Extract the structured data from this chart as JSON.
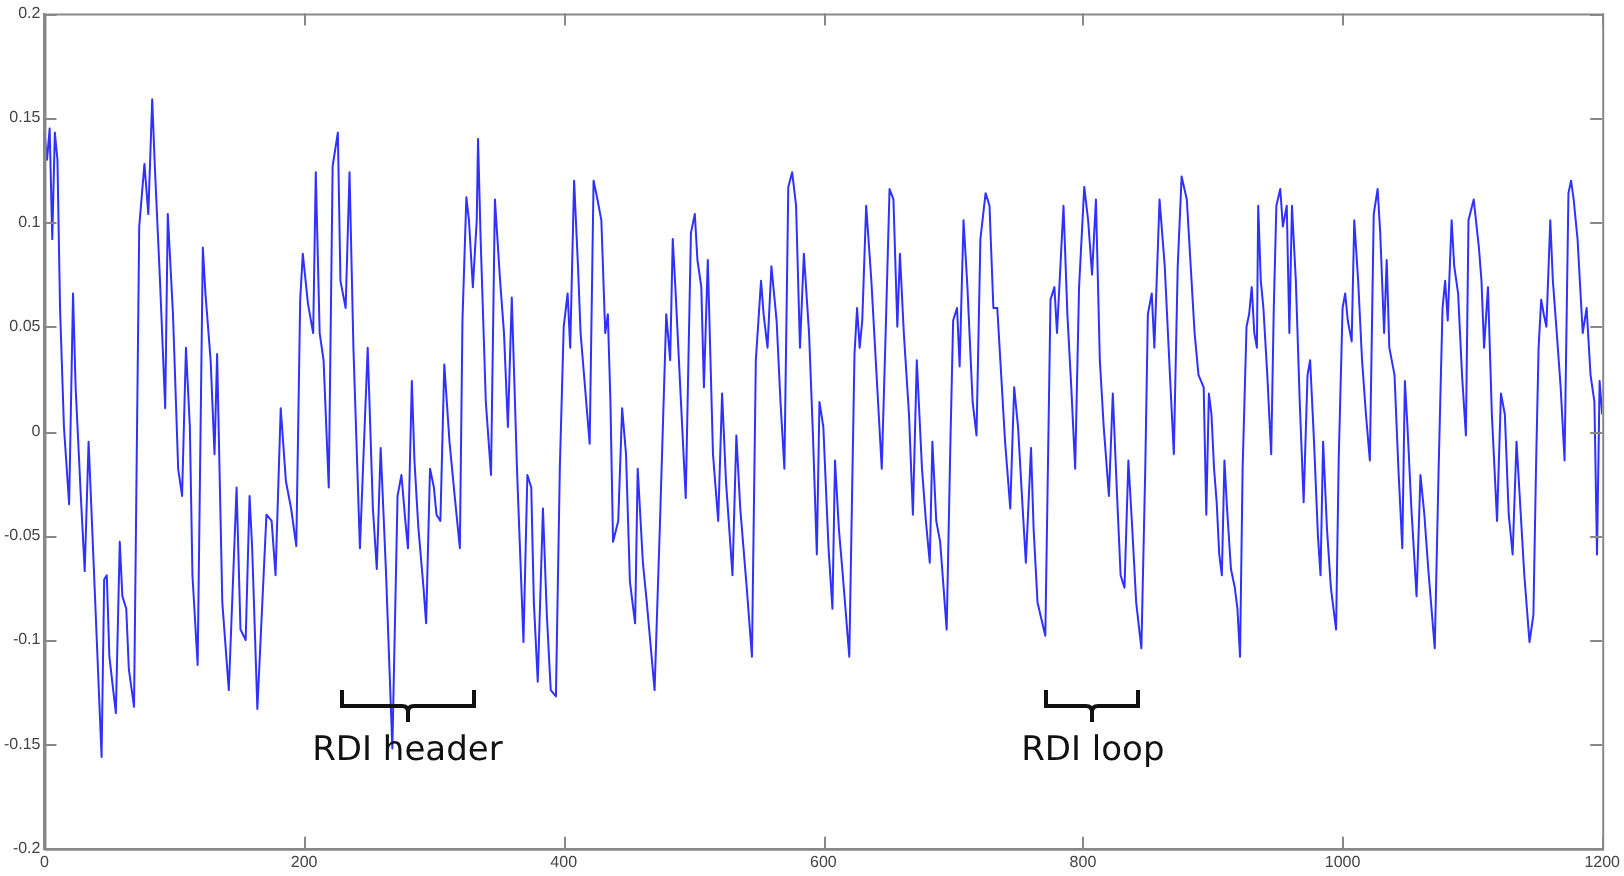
{
  "chart_data": {
    "type": "line",
    "xlim": [
      0,
      1200
    ],
    "xticks": [
      0,
      200,
      400,
      600,
      800,
      1000,
      1200
    ],
    "ylim": [
      -0.2,
      0.2
    ],
    "yticks": [
      -0.2,
      -0.15,
      -0.1,
      -0.05,
      0,
      0.05,
      0.1,
      0.15,
      0.2
    ],
    "grid": false,
    "legend": false,
    "marker": "none",
    "line_style": "solid",
    "annotations": [
      "RDI header",
      "RDI loop"
    ],
    "series": [
      {
        "color": "#3030ff",
        "x": [
          0,
          2,
          4,
          6,
          8,
          10,
          12,
          15,
          19,
          22,
          24,
          28,
          31,
          34,
          37,
          44,
          46,
          48,
          50,
          55,
          58,
          60,
          63,
          65,
          69,
          73,
          77,
          80,
          83,
          85,
          89,
          93,
          95,
          99,
          103,
          106,
          109,
          112,
          114,
          118,
          122,
          124,
          128,
          131,
          133,
          137,
          142,
          148,
          151,
          155,
          158,
          160,
          164,
          171,
          175,
          178,
          182,
          186,
          190,
          194,
          197,
          199,
          203,
          207,
          209,
          212,
          215,
          219,
          222,
          226,
          228,
          232,
          235,
          238,
          243,
          249,
          253,
          256,
          259,
          263,
          268,
          272,
          275,
          278,
          280,
          283,
          285,
          288,
          292,
          294,
          297,
          300,
          302,
          305,
          308,
          312,
          316,
          320,
          322,
          325,
          327,
          330,
          333,
          334,
          336,
          340,
          344,
          347,
          351,
          354,
          357,
          360,
          364,
          369,
          372,
          375,
          377,
          380,
          384,
          387,
          390,
          394,
          397,
          400,
          403,
          405,
          408,
          411,
          413,
          420,
          423,
          426,
          429,
          432,
          434,
          436,
          438,
          442,
          445,
          448,
          451,
          455,
          457,
          461,
          464,
          470,
          474,
          479,
          482,
          484,
          486,
          490,
          494,
          498,
          501,
          503,
          506,
          508,
          511,
          515,
          519,
          522,
          525,
          530,
          533,
          536,
          541,
          545,
          548,
          552,
          554,
          557,
          560,
          564,
          567,
          570,
          573,
          576,
          579,
          582,
          585,
          589,
          592,
          595,
          597,
          600,
          604,
          607,
          609,
          612,
          615,
          620,
          624,
          626,
          628,
          630,
          633,
          637,
          641,
          645,
          648,
          651,
          654,
          657,
          659,
          662,
          666,
          669,
          672,
          676,
          679,
          682,
          684,
          687,
          690,
          695,
          698,
          700,
          703,
          705,
          708,
          711,
          715,
          718,
          721,
          725,
          728,
          731,
          734,
          737,
          740,
          744,
          747,
          750,
          753,
          756,
          760,
          762,
          765,
          771,
          775,
          778,
          780,
          785,
          788,
          791,
          794,
          797,
          801,
          804,
          807,
          810,
          813,
          816,
          820,
          823,
          826,
          829,
          832,
          835,
          838,
          841,
          845,
          848,
          850,
          853,
          855,
          859,
          863,
          867,
          870,
          873,
          876,
          880,
          883,
          886,
          889,
          893,
          895,
          897,
          899,
          901,
          903,
          905,
          907,
          909,
          911,
          914,
          917,
          919,
          921,
          923,
          926,
          928,
          930,
          932,
          934,
          935,
          937,
          939,
          942,
          945,
          947,
          949,
          952,
          954,
          957,
          959,
          961,
          964,
          967,
          970,
          973,
          975,
          978,
          981,
          983,
          985,
          988,
          991,
          995,
          997,
          1000,
          1002,
          1004,
          1007,
          1009,
          1012,
          1015,
          1018,
          1021,
          1024,
          1027,
          1029,
          1032,
          1034,
          1036,
          1040,
          1043,
          1046,
          1048,
          1050,
          1053,
          1057,
          1060,
          1063,
          1066,
          1071,
          1074,
          1077,
          1079,
          1081,
          1084,
          1086,
          1089,
          1092,
          1095,
          1097,
          1101,
          1105,
          1107,
          1109,
          1112,
          1115,
          1119,
          1122,
          1125,
          1128,
          1131,
          1134,
          1137,
          1140,
          1144,
          1147,
          1149,
          1151,
          1153,
          1155,
          1157,
          1160,
          1162,
          1165,
          1168,
          1171,
          1174,
          1176,
          1178,
          1181,
          1185,
          1188,
          1191,
          1194,
          1196,
          1198,
          1200
        ],
        "values": [
          0.143,
          0.13,
          0.145,
          0.092,
          0.143,
          0.13,
          0.059,
          0.002,
          -0.035,
          0.066,
          0.021,
          -0.031,
          -0.067,
          -0.005,
          -0.05,
          -0.156,
          -0.071,
          -0.069,
          -0.108,
          -0.135,
          -0.053,
          -0.079,
          -0.085,
          -0.114,
          -0.132,
          0.098,
          0.128,
          0.104,
          0.159,
          0.127,
          0.072,
          0.011,
          0.104,
          0.056,
          -0.018,
          -0.031,
          0.04,
          0.002,
          -0.069,
          -0.112,
          0.088,
          0.066,
          0.034,
          -0.011,
          0.037,
          -0.082,
          -0.124,
          -0.027,
          -0.095,
          -0.1,
          -0.031,
          -0.056,
          -0.133,
          -0.04,
          -0.043,
          -0.069,
          0.011,
          -0.024,
          -0.037,
          -0.055,
          0.063,
          0.085,
          0.061,
          0.047,
          0.124,
          0.047,
          0.034,
          -0.027,
          0.127,
          0.143,
          0.072,
          0.059,
          0.124,
          0.04,
          -0.056,
          0.04,
          -0.037,
          -0.066,
          -0.008,
          -0.066,
          -0.152,
          -0.031,
          -0.021,
          -0.043,
          -0.056,
          0.024,
          -0.014,
          -0.046,
          -0.075,
          -0.092,
          -0.018,
          -0.027,
          -0.04,
          -0.043,
          0.032,
          -0.005,
          -0.031,
          -0.056,
          0.053,
          0.112,
          0.101,
          0.069,
          0.101,
          0.14,
          0.092,
          0.014,
          -0.021,
          0.111,
          0.072,
          0.047,
          0.002,
          0.064,
          -0.018,
          -0.101,
          -0.021,
          -0.027,
          -0.082,
          -0.12,
          -0.037,
          -0.088,
          -0.124,
          -0.127,
          -0.018,
          0.05,
          0.066,
          0.04,
          0.12,
          0.079,
          0.047,
          -0.006,
          0.12,
          0.111,
          0.101,
          0.047,
          0.056,
          0.014,
          -0.053,
          -0.043,
          0.011,
          -0.011,
          -0.072,
          -0.092,
          -0.018,
          -0.063,
          -0.082,
          -0.124,
          -0.047,
          0.056,
          0.034,
          0.092,
          0.069,
          0.018,
          -0.032,
          0.095,
          0.104,
          0.082,
          0.069,
          0.021,
          0.082,
          -0.011,
          -0.043,
          0.018,
          -0.024,
          -0.069,
          -0.002,
          -0.037,
          -0.075,
          -0.108,
          0.034,
          0.072,
          0.056,
          0.04,
          0.079,
          0.053,
          0.014,
          -0.018,
          0.117,
          0.124,
          0.108,
          0.04,
          0.085,
          0.047,
          -0.002,
          -0.059,
          0.014,
          0.002,
          -0.056,
          -0.085,
          -0.014,
          -0.047,
          -0.069,
          -0.108,
          0.037,
          0.059,
          0.04,
          0.053,
          0.108,
          0.072,
          0.027,
          -0.018,
          0.047,
          0.116,
          0.111,
          0.05,
          0.085,
          0.047,
          0.008,
          -0.04,
          0.034,
          -0.018,
          -0.043,
          -0.063,
          -0.005,
          -0.043,
          -0.053,
          -0.095,
          -0.002,
          0.053,
          0.059,
          0.031,
          0.101,
          0.069,
          0.014,
          -0.002,
          0.092,
          0.114,
          0.108,
          0.059,
          0.059,
          0.027,
          -0.005,
          -0.037,
          0.021,
          0.002,
          -0.031,
          -0.063,
          -0.008,
          -0.047,
          -0.082,
          -0.098,
          0.063,
          0.069,
          0.047,
          0.108,
          0.056,
          0.021,
          -0.018,
          0.069,
          0.117,
          0.101,
          0.075,
          0.111,
          0.034,
          0.002,
          -0.031,
          0.018,
          -0.027,
          -0.069,
          -0.075,
          -0.014,
          -0.047,
          -0.082,
          -0.104,
          -0.018,
          0.056,
          0.066,
          0.04,
          0.111,
          0.079,
          0.027,
          -0.011,
          0.079,
          0.122,
          0.111,
          0.079,
          0.047,
          0.027,
          0.021,
          -0.04,
          0.018,
          0.008,
          -0.018,
          -0.034,
          -0.059,
          -0.069,
          -0.014,
          -0.037,
          -0.066,
          -0.075,
          -0.085,
          -0.108,
          -0.018,
          0.05,
          0.056,
          0.069,
          0.047,
          0.04,
          0.108,
          0.072,
          0.059,
          0.027,
          -0.011,
          0.059,
          0.108,
          0.116,
          0.098,
          0.108,
          0.047,
          0.108,
          0.072,
          0.014,
          -0.034,
          0.027,
          0.034,
          -0.005,
          -0.05,
          -0.069,
          -0.005,
          -0.047,
          -0.075,
          -0.095,
          -0.014,
          0.059,
          0.066,
          0.053,
          0.043,
          0.101,
          0.072,
          0.034,
          0.008,
          -0.014,
          0.104,
          0.116,
          0.095,
          0.047,
          0.082,
          0.04,
          0.027,
          -0.018,
          -0.056,
          0.024,
          0.002,
          -0.037,
          -0.079,
          -0.021,
          -0.04,
          -0.066,
          -0.104,
          -0.018,
          0.059,
          0.072,
          0.053,
          0.101,
          0.079,
          0.066,
          0.027,
          -0.002,
          0.101,
          0.111,
          0.088,
          0.072,
          0.04,
          0.069,
          0.008,
          -0.043,
          0.018,
          0.008,
          -0.04,
          -0.059,
          -0.005,
          -0.037,
          -0.069,
          -0.101,
          -0.088,
          -0.018,
          0.04,
          0.063,
          0.056,
          0.05,
          0.101,
          0.072,
          0.047,
          0.021,
          -0.014,
          0.114,
          0.12,
          0.111,
          0.092,
          0.047,
          0.059,
          0.027,
          0.014,
          -0.059,
          0.024,
          0.008
        ]
      }
    ]
  }
}
